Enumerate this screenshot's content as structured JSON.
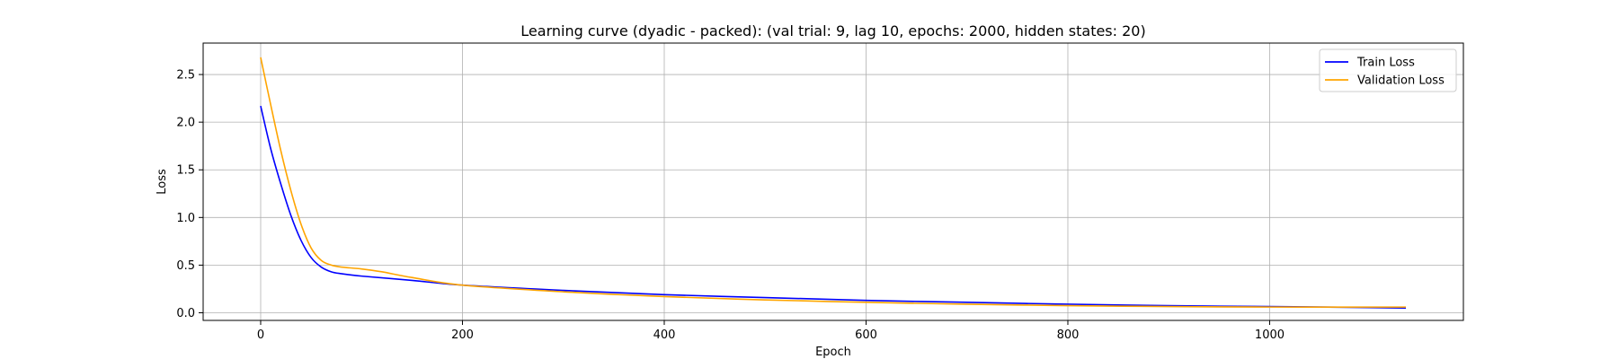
{
  "chart_data": {
    "type": "line",
    "title": "Learning curve (dyadic - packed): (val trial: 9, lag 10, epochs: 2000, hidden states: 20)",
    "xlabel": "Epoch",
    "ylabel": "Loss",
    "xlim": [
      -57,
      1192
    ],
    "ylim": [
      -0.08,
      2.83
    ],
    "xticks": [
      0,
      200,
      400,
      600,
      800,
      1000
    ],
    "yticks": [
      0.0,
      0.5,
      1.0,
      1.5,
      2.0,
      2.5
    ],
    "ytick_labels": [
      "0.0",
      "0.5",
      "1.0",
      "1.5",
      "2.0",
      "2.5"
    ],
    "grid": true,
    "legend_placement": "top-right",
    "series": [
      {
        "name": "Train Loss",
        "color": "#0000ff",
        "x": [
          0,
          10,
          20,
          30,
          40,
          50,
          60,
          70,
          80,
          100,
          150,
          200,
          300,
          400,
          500,
          600,
          700,
          800,
          900,
          1000,
          1100,
          1135
        ],
        "y": [
          2.17,
          1.72,
          1.35,
          1.02,
          0.76,
          0.58,
          0.48,
          0.43,
          0.41,
          0.385,
          0.34,
          0.29,
          0.235,
          0.19,
          0.16,
          0.13,
          0.11,
          0.09,
          0.075,
          0.065,
          0.055,
          0.05
        ]
      },
      {
        "name": "Validation Loss",
        "color": "#ffa500",
        "x": [
          0,
          10,
          20,
          30,
          40,
          50,
          60,
          70,
          80,
          100,
          120,
          150,
          200,
          300,
          400,
          500,
          600,
          700,
          800,
          900,
          1000,
          1100,
          1135
        ],
        "y": [
          2.68,
          2.18,
          1.7,
          1.28,
          0.93,
          0.68,
          0.55,
          0.5,
          0.48,
          0.46,
          0.43,
          0.37,
          0.29,
          0.22,
          0.17,
          0.135,
          0.11,
          0.09,
          0.075,
          0.065,
          0.06,
          0.06,
          0.06
        ]
      }
    ]
  }
}
